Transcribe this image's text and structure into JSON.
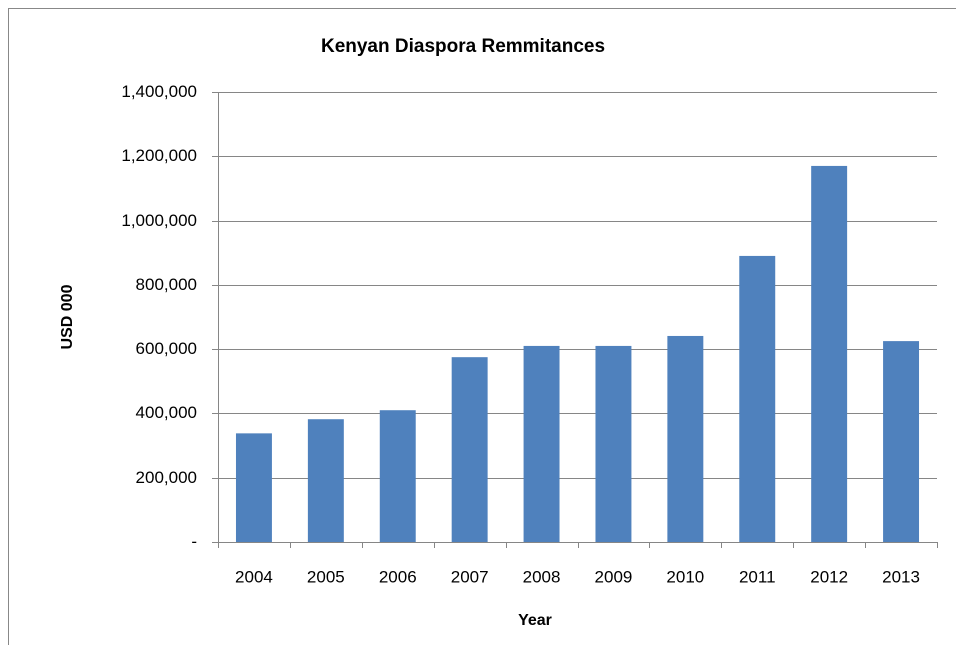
{
  "chart_data": {
    "type": "bar",
    "title": "Kenyan Diaspora Remmitances",
    "x_label": "Year",
    "y_label": "USD 000",
    "categories": [
      "2004",
      "2005",
      "2006",
      "2007",
      "2008",
      "2009",
      "2010",
      "2011",
      "2012",
      "2013"
    ],
    "values": [
      338000,
      382000,
      410000,
      575000,
      610000,
      610000,
      641000,
      890000,
      1170000,
      625000
    ],
    "color": "#4f81bd",
    "ylim": [
      0,
      1400000
    ],
    "yticks": [
      {
        "value": 0,
        "label": "-"
      },
      {
        "value": 200000,
        "label": "200,000"
      },
      {
        "value": 400000,
        "label": "400,000"
      },
      {
        "value": 600000,
        "label": "600,000"
      },
      {
        "value": 800000,
        "label": "800,000"
      },
      {
        "value": 1000000,
        "label": "1,000,000"
      },
      {
        "value": 1200000,
        "label": "1,200,000"
      },
      {
        "value": 1400000,
        "label": "1,400,000"
      }
    ],
    "grid": true
  }
}
